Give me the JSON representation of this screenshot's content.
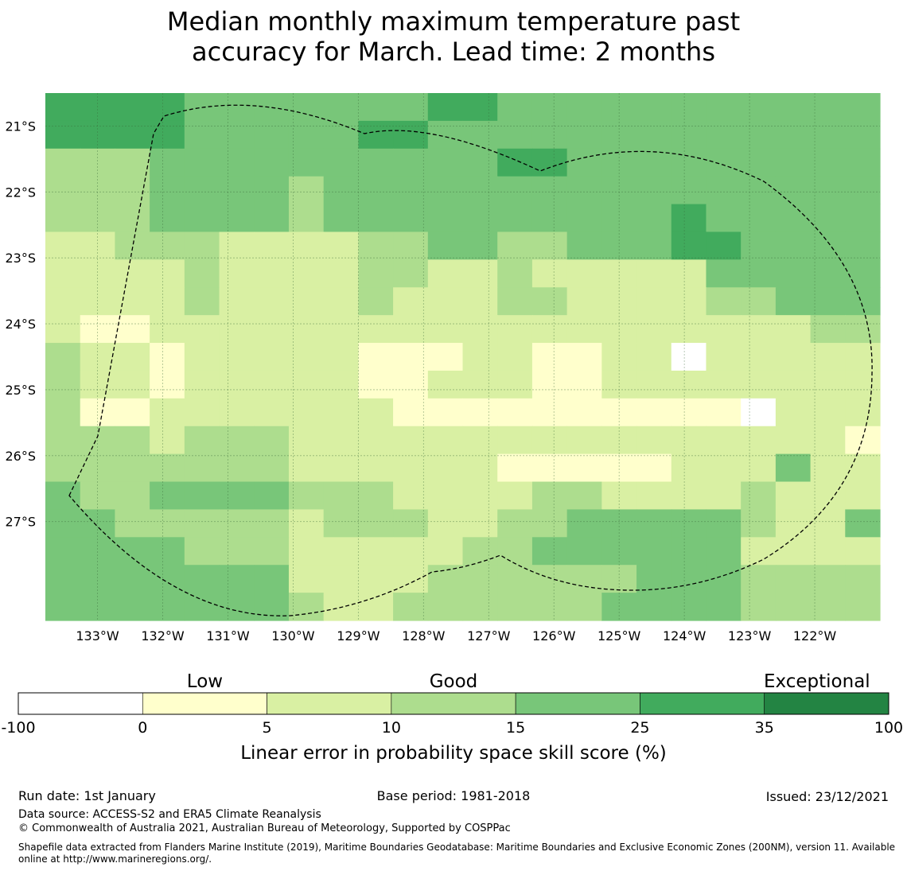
{
  "title_line1": "Median monthly maximum temperature past",
  "title_line2": "accuracy for March. Lead time: 2 months",
  "chart_data": {
    "type": "heatmap",
    "lon_range": [
      -133.8,
      -121.0
    ],
    "lat_range": [
      -28.5,
      -20.5
    ],
    "x_ticks": [
      {
        "value": -133,
        "label": "133°W"
      },
      {
        "value": -132,
        "label": "132°W"
      },
      {
        "value": -131,
        "label": "131°W"
      },
      {
        "value": -130,
        "label": "130°W"
      },
      {
        "value": -129,
        "label": "129°W"
      },
      {
        "value": -128,
        "label": "128°W"
      },
      {
        "value": -127,
        "label": "127°W"
      },
      {
        "value": -126,
        "label": "126°W"
      },
      {
        "value": -125,
        "label": "125°W"
      },
      {
        "value": -124,
        "label": "124°W"
      },
      {
        "value": -123,
        "label": "123°W"
      },
      {
        "value": -122,
        "label": "122°W"
      }
    ],
    "y_ticks": [
      {
        "value": -21,
        "label": "21°S"
      },
      {
        "value": -22,
        "label": "22°S"
      },
      {
        "value": -23,
        "label": "23°S"
      },
      {
        "value": -24,
        "label": "24°S"
      },
      {
        "value": -25,
        "label": "25°S"
      },
      {
        "value": -26,
        "label": "26°S"
      },
      {
        "value": -27,
        "label": "27°S"
      }
    ],
    "grid_note": "rows listed north to south, columns west to east; value = skill class index 0..6",
    "grid": [
      [
        5,
        5,
        5,
        5,
        4,
        4,
        4,
        4,
        4,
        4,
        4,
        5,
        5,
        4,
        4,
        4,
        4,
        4,
        4,
        4,
        4,
        4,
        4,
        4
      ],
      [
        5,
        5,
        5,
        5,
        4,
        4,
        4,
        4,
        4,
        5,
        5,
        4,
        4,
        4,
        4,
        4,
        4,
        4,
        4,
        4,
        4,
        4,
        4,
        4
      ],
      [
        3,
        3,
        3,
        4,
        4,
        4,
        4,
        4,
        4,
        4,
        4,
        4,
        4,
        5,
        5,
        4,
        4,
        4,
        4,
        4,
        4,
        4,
        4,
        4
      ],
      [
        3,
        3,
        3,
        4,
        4,
        4,
        4,
        3,
        4,
        4,
        4,
        4,
        4,
        4,
        4,
        4,
        4,
        4,
        4,
        4,
        4,
        4,
        4,
        4
      ],
      [
        3,
        3,
        3,
        4,
        4,
        4,
        4,
        3,
        4,
        4,
        4,
        4,
        4,
        4,
        4,
        4,
        4,
        4,
        5,
        4,
        4,
        4,
        4,
        4
      ],
      [
        2,
        2,
        3,
        3,
        3,
        2,
        2,
        2,
        2,
        3,
        3,
        4,
        4,
        3,
        3,
        4,
        4,
        4,
        5,
        5,
        4,
        4,
        4,
        4
      ],
      [
        2,
        2,
        2,
        2,
        3,
        2,
        2,
        2,
        2,
        3,
        3,
        2,
        2,
        3,
        2,
        2,
        2,
        2,
        2,
        4,
        4,
        4,
        4,
        4
      ],
      [
        2,
        2,
        2,
        2,
        3,
        2,
        2,
        2,
        2,
        3,
        2,
        2,
        2,
        3,
        3,
        2,
        2,
        2,
        2,
        3,
        3,
        4,
        4,
        4
      ],
      [
        2,
        1,
        1,
        2,
        2,
        2,
        2,
        2,
        2,
        2,
        2,
        2,
        2,
        2,
        2,
        2,
        2,
        2,
        2,
        2,
        2,
        2,
        3,
        3
      ],
      [
        3,
        2,
        2,
        1,
        2,
        2,
        2,
        2,
        2,
        1,
        1,
        1,
        2,
        2,
        1,
        1,
        2,
        2,
        0,
        2,
        2,
        2,
        2,
        2
      ],
      [
        3,
        2,
        2,
        1,
        2,
        2,
        2,
        2,
        2,
        1,
        1,
        2,
        2,
        2,
        1,
        1,
        2,
        2,
        2,
        2,
        2,
        2,
        2,
        2
      ],
      [
        3,
        1,
        1,
        2,
        2,
        2,
        2,
        2,
        2,
        2,
        1,
        1,
        1,
        1,
        1,
        1,
        1,
        1,
        1,
        1,
        0,
        2,
        2,
        2
      ],
      [
        3,
        3,
        3,
        2,
        3,
        3,
        3,
        2,
        2,
        2,
        2,
        2,
        2,
        2,
        2,
        2,
        2,
        2,
        2,
        2,
        2,
        2,
        2,
        1
      ],
      [
        3,
        3,
        3,
        3,
        3,
        3,
        3,
        2,
        2,
        2,
        2,
        2,
        2,
        1,
        1,
        1,
        1,
        1,
        2,
        2,
        2,
        4,
        2,
        2
      ],
      [
        4,
        3,
        3,
        4,
        4,
        4,
        4,
        3,
        3,
        3,
        2,
        2,
        2,
        2,
        3,
        3,
        2,
        2,
        2,
        2,
        3,
        2,
        2,
        2
      ],
      [
        4,
        4,
        3,
        3,
        3,
        3,
        3,
        2,
        3,
        3,
        3,
        2,
        2,
        3,
        3,
        4,
        4,
        4,
        4,
        4,
        3,
        2,
        2,
        4
      ],
      [
        4,
        4,
        4,
        4,
        3,
        3,
        3,
        2,
        2,
        2,
        2,
        2,
        3,
        3,
        4,
        4,
        4,
        4,
        4,
        4,
        2,
        2,
        2,
        2
      ],
      [
        4,
        4,
        4,
        4,
        4,
        4,
        4,
        2,
        2,
        2,
        2,
        3,
        3,
        3,
        3,
        3,
        3,
        4,
        4,
        4,
        3,
        3,
        3,
        3
      ],
      [
        4,
        4,
        4,
        4,
        4,
        4,
        4,
        3,
        2,
        2,
        3,
        3,
        3,
        3,
        3,
        3,
        4,
        4,
        4,
        4,
        3,
        3,
        3,
        3
      ]
    ],
    "colorbar": {
      "boundaries": [
        "-100",
        "0",
        "5",
        "10",
        "15",
        "25",
        "35",
        "100"
      ],
      "colors": [
        "#ffffff",
        "#ffffcc",
        "#d9f0a3",
        "#addd8e",
        "#78c679",
        "#41ab5d",
        "#238443"
      ],
      "category_labels": [
        "Low",
        "Good",
        "Exceptional"
      ],
      "label": "Linear error in probability space skill score (%)"
    }
  },
  "footer": {
    "run_date": "Run date: 1st January",
    "base_period": "Base period: 1981-2018",
    "issued": "Issued: 23/12/2021",
    "data_source": "Data source: ACCESS-S2 and ERA5 Climate Reanalysis",
    "copyright": "© Commonwealth of Australia 2021, Australian Bureau of Meteorology, Supported by COSPPac",
    "shapefile_line1": "Shapefile data extracted from Flanders Marine Institute (2019), Maritime Boundaries Geodatabase: Maritime Boundaries and Exclusive Economic Zones (200NM), version 11. Available",
    "shapefile_line2": "online at http://www.marineregions.org/."
  }
}
